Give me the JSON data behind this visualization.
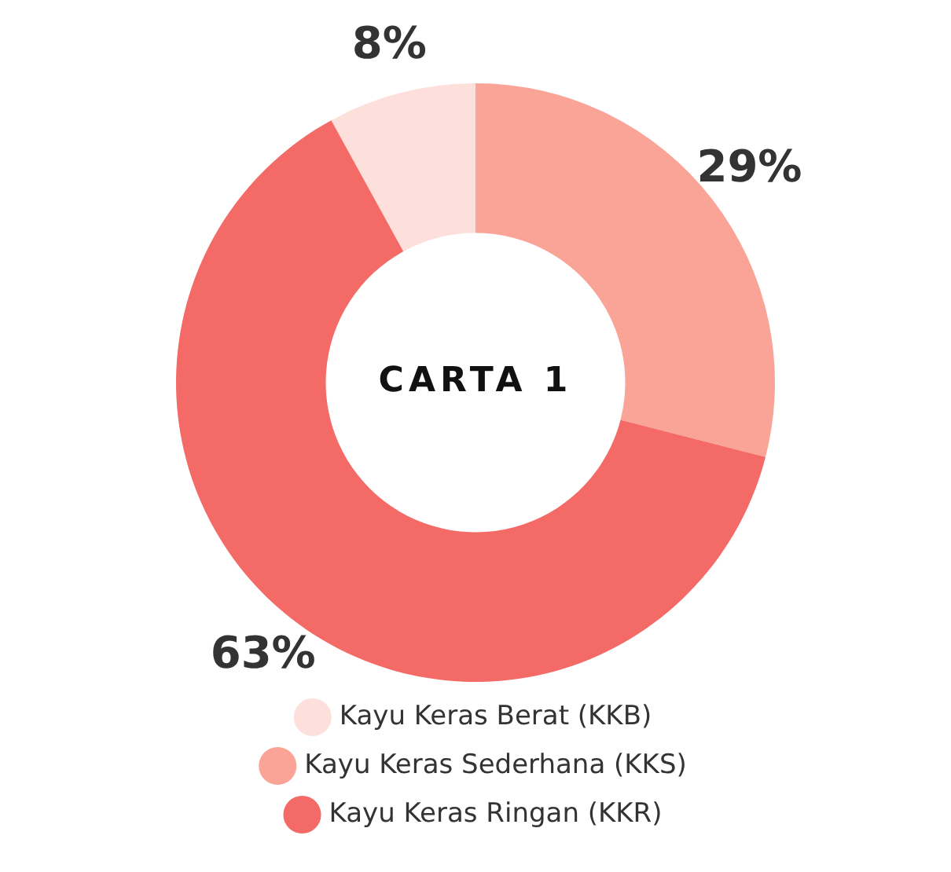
{
  "chart_data": {
    "type": "donut",
    "title": "CARTA 1",
    "categories": [
      "Kayu Keras Berat (KKB)",
      "Kayu Keras Sederhana (KKS)",
      "Kayu Keras Ringan (KKR)"
    ],
    "values": [
      8,
      29,
      63
    ],
    "value_labels": [
      "8%",
      "29%",
      "63%"
    ],
    "colors": [
      "#fde0dc",
      "#f9a496",
      "#f46a66"
    ],
    "legend": "bottom"
  }
}
